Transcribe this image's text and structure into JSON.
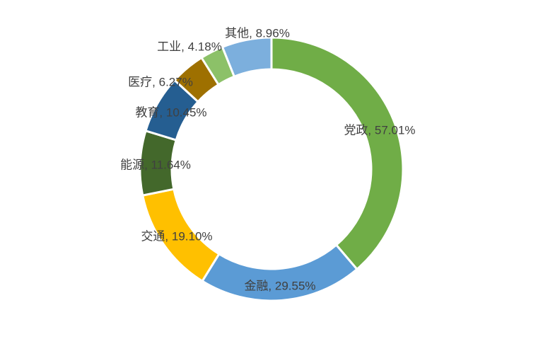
{
  "chart_data": {
    "type": "pie",
    "variant": "donut",
    "title": "",
    "legend": "none",
    "slices": [
      {
        "label": "党政, 57.01%",
        "value": 57.01,
        "color": "#70ad47"
      },
      {
        "label": "金融, 29.55%",
        "value": 29.55,
        "color": "#5b9bd5"
      },
      {
        "label": "交通, 19.10%",
        "value": 19.1,
        "color": "#ffc000"
      },
      {
        "label": "能源, 11.64%",
        "value": 11.64,
        "color": "#43682b"
      },
      {
        "label": "教育, 10.45%",
        "value": 10.45,
        "color": "#255e91"
      },
      {
        "label": "医疗, 6.27%",
        "value": 6.27,
        "color": "#9e7000"
      },
      {
        "label": "工业, 4.18%",
        "value": 4.18,
        "color": "#8cc168"
      },
      {
        "label": "其他, 8.96%",
        "value": 8.96,
        "color": "#7cafdd"
      }
    ]
  }
}
